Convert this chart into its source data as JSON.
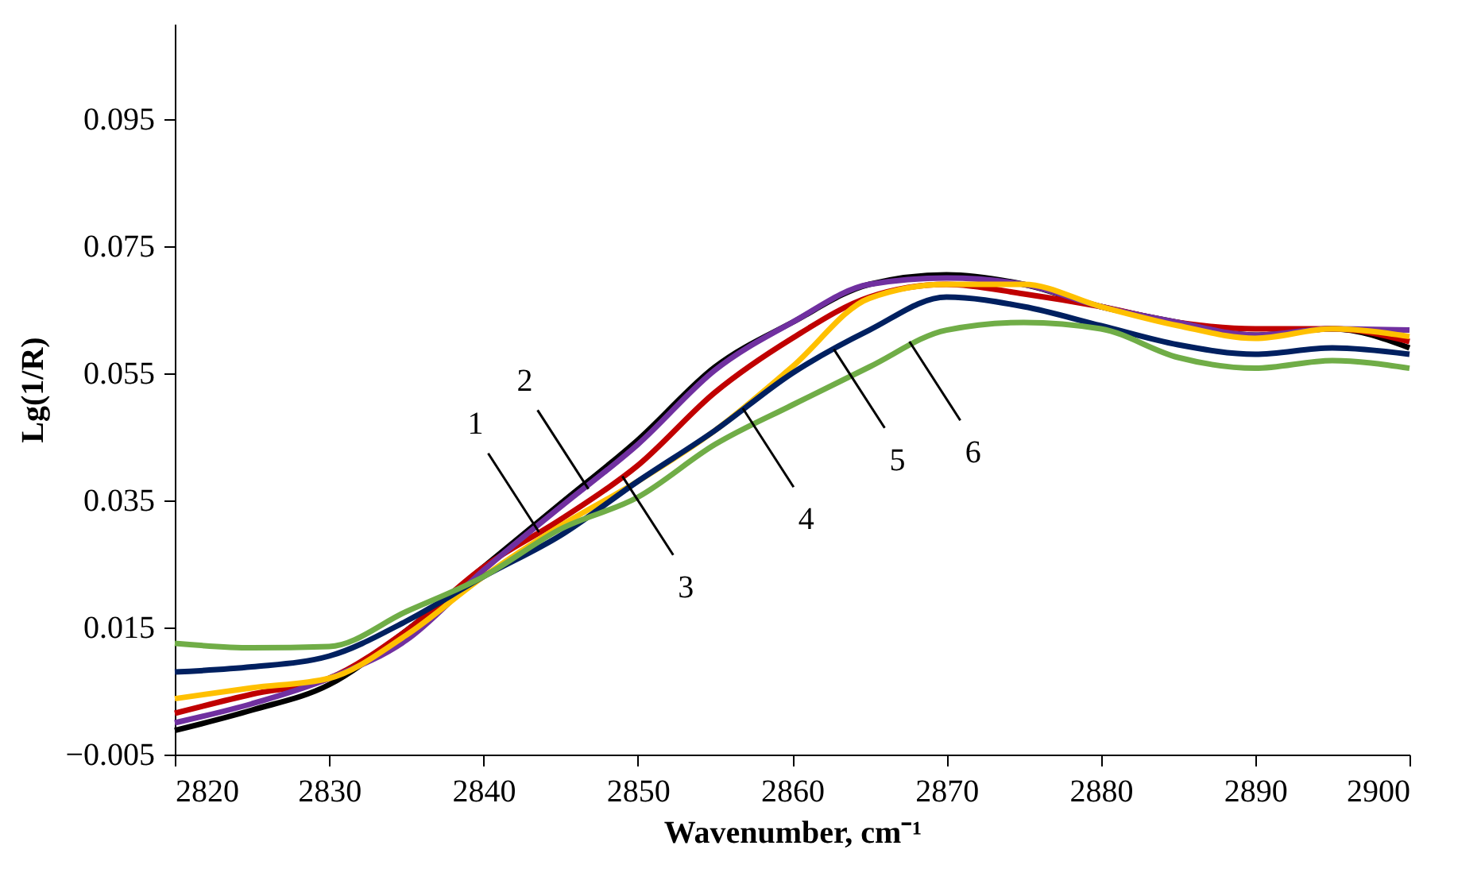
{
  "chart_data": {
    "type": "line",
    "xlabel": "Wavenumber, cm⁻¹",
    "ylabel": "Lg(1/R)",
    "x": [
      2820,
      2825,
      2830,
      2835,
      2840,
      2845,
      2850,
      2855,
      2860,
      2865,
      2870,
      2875,
      2880,
      2885,
      2890,
      2895,
      2900
    ],
    "series": [
      {
        "color": "#000000",
        "values": [
          -0.0012,
          0.002,
          0.006,
          0.0145,
          0.0245,
          0.0345,
          0.0445,
          0.056,
          0.063,
          0.069,
          0.0705,
          0.069,
          0.0655,
          0.063,
          0.061,
          0.062,
          0.059
        ]
      },
      {
        "color": "#c00000",
        "values": [
          0.0015,
          0.0045,
          0.007,
          0.0145,
          0.0245,
          0.032,
          0.0405,
          0.052,
          0.0605,
          0.067,
          0.069,
          0.0675,
          0.0655,
          0.063,
          0.062,
          0.062,
          0.06
        ]
      },
      {
        "color": "#7030a0",
        "values": [
          0.0,
          0.003,
          0.007,
          0.013,
          0.024,
          0.034,
          0.0438,
          0.0555,
          0.063,
          0.069,
          0.07,
          0.069,
          0.0655,
          0.063,
          0.061,
          0.062,
          0.0618
        ]
      },
      {
        "color": "#ffc000",
        "values": [
          0.0038,
          0.0055,
          0.007,
          0.0138,
          0.023,
          0.031,
          0.038,
          0.046,
          0.056,
          0.0668,
          0.069,
          0.069,
          0.0655,
          0.0625,
          0.0605,
          0.062,
          0.0608
        ]
      },
      {
        "color": "#002060",
        "values": [
          0.008,
          0.0088,
          0.0105,
          0.016,
          0.023,
          0.0295,
          0.038,
          0.046,
          0.055,
          0.0618,
          0.067,
          0.0655,
          0.0625,
          0.0595,
          0.058,
          0.059,
          0.058
        ]
      },
      {
        "color": "#70ad47",
        "values": [
          0.0125,
          0.0118,
          0.012,
          0.0175,
          0.023,
          0.0305,
          0.0355,
          0.0438,
          0.05,
          0.056,
          0.0618,
          0.063,
          0.062,
          0.0575,
          0.0558,
          0.057,
          0.0558
        ]
      }
    ],
    "xlim": [
      2820,
      2900
    ],
    "xticks": [
      2820,
      2830,
      2840,
      2850,
      2860,
      2870,
      2880,
      2890,
      2900
    ],
    "ylim": [
      -0.005,
      0.11
    ],
    "yticks": [
      -0.005,
      0.015,
      0.035,
      0.055,
      0.075,
      0.095
    ],
    "grid": false,
    "line_style": "solid",
    "annotations": [
      {
        "text": "1",
        "x": 2843.6,
        "y": 0.03
      },
      {
        "text": "2",
        "x": 2846.8,
        "y": 0.0368
      },
      {
        "text": "3",
        "x": 2849.0,
        "y": 0.0388
      },
      {
        "text": "4",
        "x": 2856.8,
        "y": 0.0495
      },
      {
        "text": "5",
        "x": 2862.7,
        "y": 0.0588
      },
      {
        "text": "6",
        "x": 2867.6,
        "y": 0.06
      }
    ]
  }
}
